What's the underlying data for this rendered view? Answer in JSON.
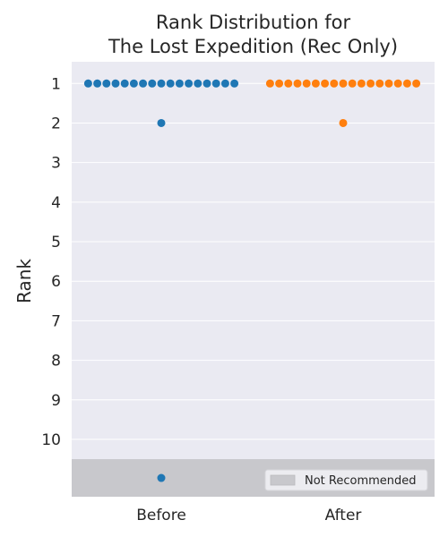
{
  "chart_data": {
    "type": "scatter",
    "title_line1": "Rank Distribution for",
    "title_line2": "The Lost Expedition (Rec Only)",
    "xlabel": "",
    "ylabel": "Rank",
    "categories": [
      "Before",
      "After"
    ],
    "y_ticks": [
      1,
      2,
      3,
      4,
      5,
      6,
      7,
      8,
      9,
      10
    ],
    "ylim": [
      0.45,
      11.45
    ],
    "not_recommended_band": {
      "label": "Not Recommended",
      "color": "#c8c8cc"
    },
    "grid": true,
    "legend_position": "lower-right",
    "colors": {
      "background": "#eaeaf2",
      "grid": "#ffffff",
      "Before": "#1f77b4",
      "After": "#ff7f0e"
    },
    "series": [
      {
        "category": "Before",
        "rank_1_count": 17,
        "rank_2_count": 1,
        "not_recommended_count": 1
      },
      {
        "category": "After",
        "rank_1_count": 17,
        "rank_2_count": 1,
        "not_recommended_count": 0
      }
    ]
  }
}
